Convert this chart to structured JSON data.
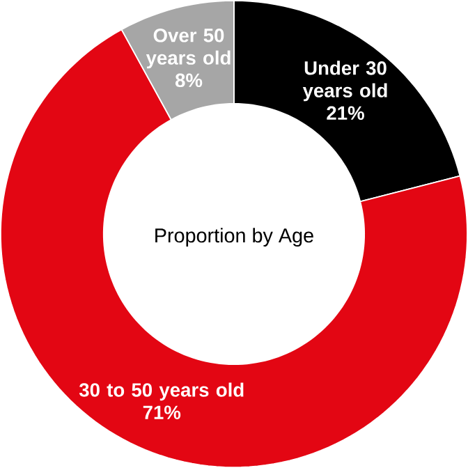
{
  "chart_data": {
    "type": "donut",
    "categories": [
      "Under 30 years old",
      "30 to 50 years old",
      "Over 50 years old"
    ],
    "values": [
      21,
      71,
      8
    ],
    "colors": [
      "#000000",
      "#e30613",
      "#a6a6a6"
    ],
    "value_labels": [
      "21%",
      "71%",
      "8%"
    ],
    "annotations": [
      "Proportion by Age"
    ]
  }
}
